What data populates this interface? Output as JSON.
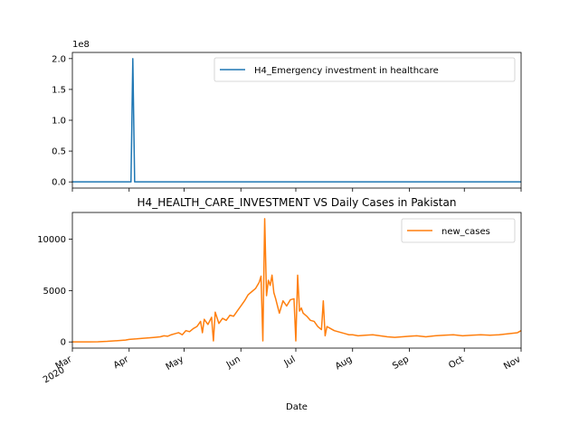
{
  "chart_data": [
    {
      "type": "line",
      "title": "",
      "xlabel": "",
      "ylabel": "",
      "offset_label": "1e8",
      "yticks": [
        "0.0",
        "0.5",
        "1.0",
        "1.5",
        "2.0"
      ],
      "ytick_values": [
        0,
        0.5,
        1.0,
        1.5,
        2.0
      ],
      "ylim": [
        -0.1,
        2.1
      ],
      "xlim": [
        "2020-03-01",
        "2020-11-01"
      ],
      "legend_position": "upper right",
      "series": [
        {
          "name": "H4_Emergency investment in healthcare",
          "color": "#1f77b4",
          "x": [
            "2020-03-01",
            "2020-04-02",
            "2020-04-03",
            "2020-04-04",
            "2020-11-01"
          ],
          "y": [
            0,
            0,
            2.0,
            0,
            0
          ]
        }
      ]
    },
    {
      "type": "line",
      "title": "H4_HEALTH_CARE_INVESTMENT VS Daily Cases in Pakistan",
      "xlabel": "Date",
      "ylabel": "",
      "yticks": [
        "0",
        "5000",
        "10000"
      ],
      "ytick_values": [
        0,
        5000,
        10000
      ],
      "ylim": [
        -600,
        12600
      ],
      "xlim": [
        "2020-03-01",
        "2020-11-01"
      ],
      "xticks": [
        "Mar\n2020",
        "Apr",
        "May",
        "Jun",
        "Jul",
        "Aug",
        "Sep",
        "Oct",
        "Nov"
      ],
      "xtick_dates": [
        "2020-03-01",
        "2020-04-01",
        "2020-05-01",
        "2020-06-01",
        "2020-07-01",
        "2020-08-01",
        "2020-09-01",
        "2020-10-01",
        "2020-11-01"
      ],
      "legend_position": "upper right",
      "series": [
        {
          "name": "new_cases",
          "color": "#ff7f0e",
          "x": [
            "2020-03-01",
            "2020-03-10",
            "2020-03-15",
            "2020-03-20",
            "2020-03-25",
            "2020-03-30",
            "2020-04-01",
            "2020-04-05",
            "2020-04-08",
            "2020-04-12",
            "2020-04-15",
            "2020-04-18",
            "2020-04-20",
            "2020-04-22",
            "2020-04-24",
            "2020-04-26",
            "2020-04-28",
            "2020-04-30",
            "2020-05-02",
            "2020-05-04",
            "2020-05-06",
            "2020-05-08",
            "2020-05-10",
            "2020-05-11",
            "2020-05-12",
            "2020-05-14",
            "2020-05-16",
            "2020-05-17",
            "2020-05-18",
            "2020-05-20",
            "2020-05-22",
            "2020-05-24",
            "2020-05-26",
            "2020-05-28",
            "2020-05-30",
            "2020-06-01",
            "2020-06-03",
            "2020-06-05",
            "2020-06-07",
            "2020-06-09",
            "2020-06-11",
            "2020-06-12",
            "2020-06-13",
            "2020-06-14",
            "2020-06-15",
            "2020-06-16",
            "2020-06-17",
            "2020-06-18",
            "2020-06-19",
            "2020-06-20",
            "2020-06-21",
            "2020-06-22",
            "2020-06-24",
            "2020-06-26",
            "2020-06-28",
            "2020-06-30",
            "2020-07-01",
            "2020-07-02",
            "2020-07-03",
            "2020-07-04",
            "2020-07-05",
            "2020-07-07",
            "2020-07-09",
            "2020-07-11",
            "2020-07-13",
            "2020-07-15",
            "2020-07-16",
            "2020-07-17",
            "2020-07-18",
            "2020-07-20",
            "2020-07-22",
            "2020-07-24",
            "2020-07-26",
            "2020-07-28",
            "2020-07-30",
            "2020-08-01",
            "2020-08-04",
            "2020-08-08",
            "2020-08-12",
            "2020-08-16",
            "2020-08-20",
            "2020-08-24",
            "2020-08-28",
            "2020-09-01",
            "2020-09-05",
            "2020-09-10",
            "2020-09-15",
            "2020-09-20",
            "2020-09-25",
            "2020-09-30",
            "2020-10-05",
            "2020-10-10",
            "2020-10-15",
            "2020-10-20",
            "2020-10-25",
            "2020-10-30",
            "2020-11-01"
          ],
          "y": [
            0,
            5,
            20,
            60,
            120,
            180,
            250,
            300,
            350,
            400,
            450,
            500,
            600,
            550,
            700,
            800,
            900,
            700,
            1100,
            1000,
            1300,
            1500,
            2000,
            900,
            2200,
            1700,
            2400,
            100,
            2900,
            1800,
            2300,
            2100,
            2600,
            2500,
            3000,
            3500,
            4000,
            4600,
            4900,
            5200,
            5800,
            6400,
            100,
            12000,
            4500,
            6000,
            5500,
            6500,
            4800,
            4200,
            3500,
            2800,
            4000,
            3500,
            4100,
            4200,
            100,
            6500,
            3000,
            3300,
            2800,
            2500,
            2100,
            2000,
            1500,
            1200,
            4000,
            600,
            1500,
            1300,
            1100,
            1000,
            900,
            800,
            700,
            700,
            600,
            650,
            700,
            600,
            500,
            450,
            500,
            550,
            600,
            500,
            600,
            650,
            700,
            600,
            650,
            700,
            650,
            700,
            800,
            900,
            1100
          ]
        }
      ]
    }
  ]
}
